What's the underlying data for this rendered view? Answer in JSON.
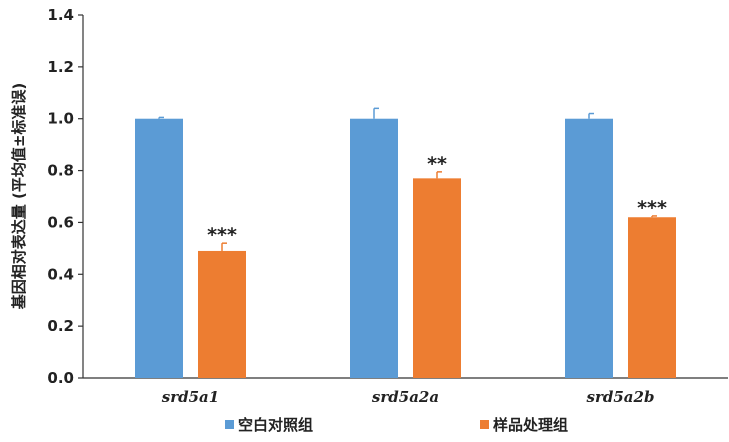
{
  "chart_data": {
    "type": "bar",
    "ylabel": "基因相对表达量 (平均值±标准误)",
    "ylim": [
      0,
      1.4
    ],
    "yticks": [
      "0.0",
      "0.2",
      "0.4",
      "0.6",
      "0.8",
      "1.0",
      "1.2",
      "1.4"
    ],
    "categories": [
      "srd5a1",
      "srd5a2a",
      "srd5a2b"
    ],
    "series": [
      {
        "name": "空白对照组",
        "color": "#5b9bd5",
        "values": [
          1.0,
          1.0,
          1.0
        ],
        "errors": [
          0.005,
          0.04,
          0.02
        ],
        "significance": [
          "",
          "",
          ""
        ]
      },
      {
        "name": "样品处理组",
        "color": "#ed7d31",
        "values": [
          0.49,
          0.77,
          0.62
        ],
        "errors": [
          0.03,
          0.025,
          0.005
        ],
        "significance": [
          "***",
          "**",
          "***"
        ]
      }
    ],
    "legend_position": "bottom",
    "grid": false
  }
}
